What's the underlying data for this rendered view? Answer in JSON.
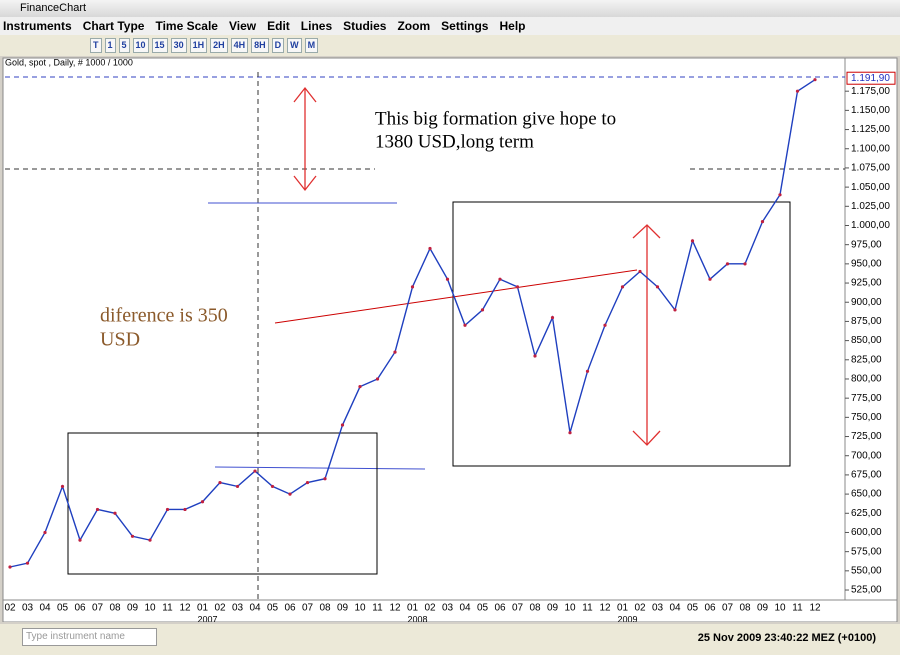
{
  "window": {
    "title": "FinanceChart"
  },
  "menu": [
    "Instruments",
    "Chart Type",
    "Time Scale",
    "View",
    "Edit",
    "Lines",
    "Studies",
    "Zoom",
    "Settings",
    "Help"
  ],
  "toolbar": [
    "T",
    "1",
    "5",
    "10",
    "15",
    "30",
    "1H",
    "2H",
    "4H",
    "8H",
    "D",
    "W",
    "M"
  ],
  "chart_data": {
    "type": "line",
    "subtitle": "Gold, spot , Daily, # 1000 / 1000",
    "categories": [
      "02",
      "03",
      "04",
      "05",
      "06",
      "07",
      "08",
      "09",
      "10",
      "11",
      "12",
      "01",
      "02",
      "03",
      "04",
      "05",
      "06",
      "07",
      "08",
      "09",
      "10",
      "11",
      "12",
      "01",
      "02",
      "03",
      "04",
      "05",
      "06",
      "07",
      "08",
      "09",
      "10",
      "11",
      "12",
      "01",
      "02",
      "03",
      "04",
      "05",
      "06",
      "07",
      "08",
      "09",
      "10",
      "11",
      "12"
    ],
    "year_labels": [
      "2007",
      "2008",
      "2009"
    ],
    "values": [
      555,
      560,
      600,
      660,
      590,
      630,
      625,
      595,
      590,
      630,
      630,
      640,
      665,
      660,
      680,
      660,
      650,
      665,
      670,
      740,
      790,
      800,
      835,
      920,
      970,
      930,
      870,
      890,
      930,
      920,
      830,
      880,
      730,
      810,
      870,
      920,
      940,
      920,
      890,
      980,
      930,
      950,
      950,
      1005,
      1040,
      1175,
      1190
    ],
    "color": "#1f3fbf",
    "last_price": {
      "value": 1191.9,
      "label": "1.191,90"
    },
    "ylim": [
      512,
      1200
    ],
    "yticks": [
      {
        "value": 525,
        "label": "525,00"
      },
      {
        "value": 550,
        "label": "550,00"
      },
      {
        "value": 575,
        "label": "575,00"
      },
      {
        "value": 600,
        "label": "600,00"
      },
      {
        "value": 625,
        "label": "625,00"
      },
      {
        "value": 650,
        "label": "650,00"
      },
      {
        "value": 675,
        "label": "675,00"
      },
      {
        "value": 700,
        "label": "700,00"
      },
      {
        "value": 725,
        "label": "725,00"
      },
      {
        "value": 750,
        "label": "750,00"
      },
      {
        "value": 775,
        "label": "775,00"
      },
      {
        "value": 800,
        "label": "800,00"
      },
      {
        "value": 825,
        "label": "825,00"
      },
      {
        "value": 850,
        "label": "850,00"
      },
      {
        "value": 875,
        "label": "875,00"
      },
      {
        "value": 900,
        "label": "900,00"
      },
      {
        "value": 925,
        "label": "925,00"
      },
      {
        "value": 950,
        "label": "950,00"
      },
      {
        "value": 975,
        "label": "975,00"
      },
      {
        "value": 1000,
        "label": "1.000,00"
      },
      {
        "value": 1025,
        "label": "1.025,00"
      },
      {
        "value": 1050,
        "label": "1.050,00"
      },
      {
        "value": 1075,
        "label": "1.075,00"
      },
      {
        "value": 1100,
        "label": "1.100,00"
      },
      {
        "value": 1125,
        "label": "1.125,00"
      },
      {
        "value": 1150,
        "label": "1.150,00"
      },
      {
        "value": 1175,
        "label": "1.175,00"
      }
    ],
    "annotations": [
      "This big formation give hope to",
      "1380 USD,long term",
      "diference is 350",
      "USD"
    ]
  },
  "status": {
    "search_placeholder": "Type instrument name",
    "datetime": "25 Nov 2009 23:40:22  MEZ (+0100)"
  }
}
